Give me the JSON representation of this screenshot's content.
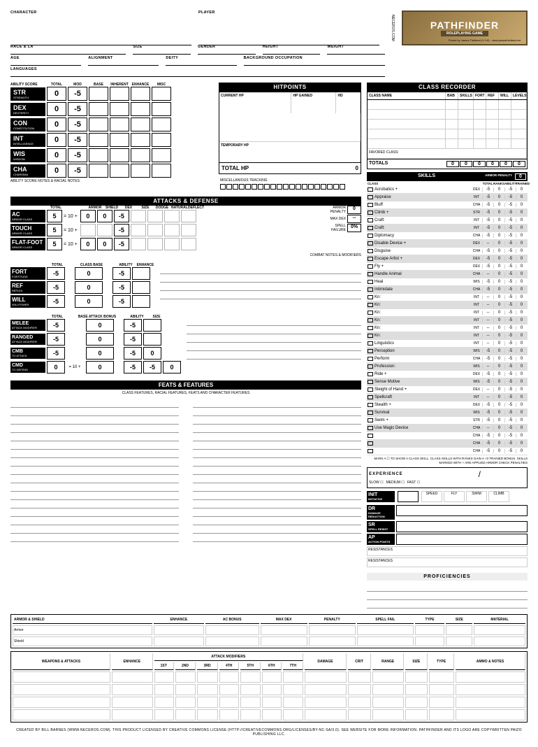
{
  "header": {
    "character": "CHARACTER",
    "player": "PLAYER",
    "race": "RACE & LA",
    "size": "SIZE",
    "gender": "GENDER",
    "height": "HEIGHT",
    "weight": "WEIGHT",
    "age": "AGE",
    "alignment": "ALIGNMENT",
    "deity": "DEITY",
    "bgocc": "BACKGROUND OCCUPATION",
    "languages": "LANGUAGES",
    "neceros": "NECEROS.COM"
  },
  "logo": {
    "main": "PATHFINDER",
    "sub": "ROLEPLAYING GAME",
    "credit": "Forms by James Thelland (1.0.8) - www.jamesthelland.net"
  },
  "abilityHeaders": [
    "TOTAL",
    "MOD",
    "BASE",
    "INHERENT",
    "ENHANCE",
    "MISC"
  ],
  "abilityNote": "ABILITY SCORE NOTES & RACIAL NOTES",
  "abilities": [
    {
      "abbr": "STR",
      "name": "STRENGTH",
      "total": "0",
      "mod": "-5"
    },
    {
      "abbr": "DEX",
      "name": "DEXTERITY",
      "total": "0",
      "mod": "-5"
    },
    {
      "abbr": "CON",
      "name": "CONSTITUTION",
      "total": "0",
      "mod": "-5"
    },
    {
      "abbr": "INT",
      "name": "INTELLIGENCE",
      "total": "0",
      "mod": "-5"
    },
    {
      "abbr": "WIS",
      "name": "WISDOM",
      "total": "0",
      "mod": "-5"
    },
    {
      "abbr": "CHA",
      "name": "CHARISMA",
      "total": "0",
      "mod": "-5"
    }
  ],
  "hp": {
    "title": "HITPOINTS",
    "current": "CURRENT HP",
    "gained": "HP GAINED",
    "hd": "HD",
    "temp": "TEMPORARY HP",
    "total": "TOTAL HP",
    "totalval": "0",
    "misc": "MISCELLANIOUS TRACKING"
  },
  "classrec": {
    "title": "CLASS RECORDER",
    "cols": [
      "CLASS NAME",
      "BAB",
      "SKILLS",
      "FORT",
      "REF",
      "WILL",
      "LEVELS"
    ],
    "favored": "FAVORED CLASS:",
    "totals": "TOTALS",
    "tv": [
      "0",
      "0",
      "0",
      "0",
      "0",
      "0"
    ]
  },
  "skillsTitle": "SKILLS",
  "skillsCols": [
    "CLASS",
    "",
    "",
    "TOTAL",
    "RANKS",
    "ABILITY",
    "TRAINED"
  ],
  "armorPenalty": "ARMOR PENALTY",
  "armorPenVal": "0",
  "skills": [
    {
      "n": "Acrobatics +",
      "s": "DEX",
      "v": [
        "-5",
        "0",
        "-5",
        "0"
      ],
      "sh": 0
    },
    {
      "n": "Appraise",
      "s": "INT",
      "v": [
        "-5",
        "0",
        "-5",
        "0"
      ],
      "sh": 1
    },
    {
      "n": "Bluff",
      "s": "CHA",
      "v": [
        "-5",
        "0",
        "-5",
        "0"
      ],
      "sh": 0
    },
    {
      "n": "Climb +",
      "s": "STR",
      "v": [
        "-5",
        "0",
        "-5",
        "0"
      ],
      "sh": 1
    },
    {
      "n": "Craft:",
      "s": "INT",
      "v": [
        "-5",
        "0",
        "-5",
        "0"
      ],
      "sh": 0
    },
    {
      "n": "Craft:",
      "s": "INT",
      "v": [
        "-5",
        "0",
        "-5",
        "0"
      ],
      "sh": 1
    },
    {
      "n": "Diplomacy",
      "s": "CHA",
      "v": [
        "-5",
        "0",
        "-5",
        "0"
      ],
      "sh": 0
    },
    {
      "n": "Disable Device +",
      "s": "DEX",
      "v": [
        "--",
        "0",
        "-5",
        "0"
      ],
      "sh": 1
    },
    {
      "n": "Disguise",
      "s": "CHA",
      "v": [
        "-5",
        "0",
        "-5",
        "0"
      ],
      "sh": 0
    },
    {
      "n": "Escape Artist +",
      "s": "DEX",
      "v": [
        "-5",
        "0",
        "-5",
        "0"
      ],
      "sh": 1
    },
    {
      "n": "Fly +",
      "s": "DEX",
      "v": [
        "-5",
        "0",
        "-5",
        "0"
      ],
      "sh": 0
    },
    {
      "n": "Handle Animal",
      "s": "CHA",
      "v": [
        "--",
        "0",
        "-5",
        "0"
      ],
      "sh": 1
    },
    {
      "n": "Heal",
      "s": "WIS",
      "v": [
        "-5",
        "0",
        "-5",
        "0"
      ],
      "sh": 0
    },
    {
      "n": "Intimidate",
      "s": "CHA",
      "v": [
        "-5",
        "0",
        "-5",
        "0"
      ],
      "sh": 1
    },
    {
      "n": "Kn:",
      "s": "INT",
      "v": [
        "--",
        "0",
        "-5",
        "0"
      ],
      "sh": 0
    },
    {
      "n": "Kn:",
      "s": "INT",
      "v": [
        "--",
        "0",
        "-5",
        "0"
      ],
      "sh": 1
    },
    {
      "n": "Kn:",
      "s": "INT",
      "v": [
        "--",
        "0",
        "-5",
        "0"
      ],
      "sh": 0
    },
    {
      "n": "Kn:",
      "s": "INT",
      "v": [
        "--",
        "0",
        "-5",
        "0"
      ],
      "sh": 1
    },
    {
      "n": "Kn:",
      "s": "INT",
      "v": [
        "--",
        "0",
        "-5",
        "0"
      ],
      "sh": 0
    },
    {
      "n": "Kn:",
      "s": "INT",
      "v": [
        "--",
        "0",
        "-5",
        "0"
      ],
      "sh": 1
    },
    {
      "n": "Linguistics",
      "s": "INT",
      "v": [
        "--",
        "0",
        "-5",
        "0"
      ],
      "sh": 0
    },
    {
      "n": "Perception",
      "s": "WIS",
      "v": [
        "-5",
        "0",
        "-5",
        "0"
      ],
      "sh": 1
    },
    {
      "n": "Perform",
      "s": "CHA",
      "v": [
        "-5",
        "0",
        "-5",
        "0"
      ],
      "sh": 0
    },
    {
      "n": "Profession:",
      "s": "WIS",
      "v": [
        "--",
        "0",
        "-5",
        "0"
      ],
      "sh": 1
    },
    {
      "n": "Ride +",
      "s": "DEX",
      "v": [
        "-5",
        "0",
        "-5",
        "0"
      ],
      "sh": 0
    },
    {
      "n": "Sense Motive",
      "s": "WIS",
      "v": [
        "-5",
        "0",
        "-5",
        "0"
      ],
      "sh": 1
    },
    {
      "n": "Sleight of Hand +",
      "s": "DEX",
      "v": [
        "--",
        "0",
        "-5",
        "0"
      ],
      "sh": 0
    },
    {
      "n": "Spellcraft",
      "s": "INT",
      "v": [
        "--",
        "0",
        "-5",
        "0"
      ],
      "sh": 1
    },
    {
      "n": "Stealth +",
      "s": "DEX",
      "v": [
        "-5",
        "0",
        "-5",
        "0"
      ],
      "sh": 0
    },
    {
      "n": "Survival",
      "s": "WIS",
      "v": [
        "-5",
        "0",
        "-5",
        "0"
      ],
      "sh": 1
    },
    {
      "n": "Swim +",
      "s": "STR",
      "v": [
        "-5",
        "0",
        "-5",
        "0"
      ],
      "sh": 0
    },
    {
      "n": "Use Magic Device",
      "s": "CHA",
      "v": [
        "--",
        "0",
        "-5",
        "0"
      ],
      "sh": 1
    },
    {
      "n": "",
      "s": "CHA",
      "v": [
        "-5",
        "0",
        "-5",
        "0"
      ],
      "sh": 0
    },
    {
      "n": "",
      "s": "CHA",
      "v": [
        "-5",
        "0",
        "-5",
        "0"
      ],
      "sh": 1
    },
    {
      "n": "",
      "s": "CHA",
      "v": [
        "-5",
        "0",
        "-5",
        "0"
      ],
      "sh": 0
    }
  ],
  "skillNote": "MARK A ☐ TO SHOW A CLASS SKILL. CLASS SKILLS WITH RANKS GAIN A +3 TRAINED BONUS. SKILLS MARKED WITH + ARE APPLIED ARMOR CHECK PENALTIES",
  "ad": {
    "title": "ATTACKS & DEFENSE"
  },
  "adHeaders": [
    "TOTAL",
    "",
    "ARMOR",
    "SHIELD",
    "DEX",
    "SIZE",
    "DODGE",
    "NATURAL",
    "DEFLECT"
  ],
  "armorClass": [
    {
      "abbr": "AC",
      "name": "ARMOR CLASS",
      "total": "5",
      "base": "= 10 +",
      "v": [
        "0",
        "0",
        "-5",
        "",
        "",
        "",
        ""
      ]
    },
    {
      "abbr": "TOUCH",
      "name": "ARMOR CLASS",
      "total": "5",
      "base": "= 10 +",
      "v": [
        "",
        "",
        "-5",
        "",
        "",
        "",
        ""
      ]
    },
    {
      "abbr": "FLAT-FOOT",
      "name": "ARMOR CLASS",
      "total": "5",
      "base": "= 10 +",
      "v": [
        "0",
        "0",
        "-5",
        "",
        "",
        "",
        ""
      ]
    }
  ],
  "sideStats": [
    {
      "l": "ARMOR PENALTY",
      "v": "0"
    },
    {
      "l": "MAX DEX",
      "v": "--"
    },
    {
      "l": "SPELL FAILURE",
      "v": "0%"
    }
  ],
  "combatNote": "COMBAT NOTES & MODIFIERS",
  "saveHeaders": [
    "TOTAL",
    "",
    "CLASS BASE",
    "",
    "ABILITY",
    "ENHANCE"
  ],
  "saves": [
    {
      "abbr": "FORT",
      "name": "FORTITUDE",
      "v": [
        "-5",
        "",
        "0",
        "",
        "-5",
        ""
      ]
    },
    {
      "abbr": "REF",
      "name": "REFLEX",
      "v": [
        "-5",
        "",
        "0",
        "",
        "-5",
        ""
      ]
    },
    {
      "abbr": "WILL",
      "name": "WILLPOWER",
      "v": [
        "-5",
        "",
        "0",
        "",
        "-5",
        ""
      ]
    }
  ],
  "attackHeaders": [
    "TOTAL",
    "",
    "BASE ATTACK BONUS",
    "",
    "ABILITY",
    "SIZE"
  ],
  "attacks": [
    {
      "abbr": "MELEE",
      "name": "ATTACK MODIFIER",
      "v": [
        "-5",
        "",
        "0",
        "",
        "-5",
        ""
      ]
    },
    {
      "abbr": "RANGED",
      "name": "ATTACK MODIFIER",
      "v": [
        "-5",
        "",
        "0",
        "",
        "-5",
        ""
      ]
    },
    {
      "abbr": "CMB",
      "name": "TO ATTACK",
      "v": [
        "-5",
        "",
        "0",
        "",
        "-5",
        "0"
      ]
    },
    {
      "abbr": "CMD",
      "name": "TO DEFEND",
      "v": [
        "0",
        "= 10 +",
        "0",
        "",
        "-5",
        "-5",
        "0"
      ]
    }
  ],
  "feats": {
    "title": "FEATS & FEATURES",
    "sub": "CLASS FEATURES, RACIAL FEATURES, FEATS AND CHARACTER FEATURES"
  },
  "exp": {
    "title": "EXPERIENCE",
    "slow": "SLOW ☐",
    "med": "MEDIUM ☐",
    "fast": "FAST ☐",
    "slash": "/"
  },
  "init": {
    "abbr": "INIT",
    "name": "INITIATIVE"
  },
  "speedCols": [
    "SPEED",
    "FLY",
    "SWIM",
    "CLIMB"
  ],
  "miscStats": [
    {
      "abbr": "DR",
      "name": "DAMAGE REDUCTION"
    },
    {
      "abbr": "SR",
      "name": "SPELL RESIST"
    },
    {
      "abbr": "AP",
      "name": "ACTION POINTS"
    }
  ],
  "resistances": "RESISTANCES",
  "prof": "PROFICIENCIES",
  "armorCols": [
    "ARMOR & SHIELD",
    "ENHANCE",
    "AC BONUS",
    "MAX DEX",
    "PENALTY",
    "SPELL FAIL",
    "TYPE",
    "SIZE",
    "MATERIAL"
  ],
  "armorRows": [
    "Armor",
    "Shield"
  ],
  "weaponCols": [
    "WEAPONS & ATTACKS",
    "ENHANCE",
    "1ST",
    "2ND",
    "3RD",
    "4TH",
    "5TH",
    "6TH",
    "7TH",
    "DAMAGE",
    "CRIT",
    "RANGE",
    "SIZE",
    "TYPE",
    "AMMO & NOTES"
  ],
  "weaponSubhead": "ATTACK MODIFIERS",
  "footer": "CREATED BY BILL BARNES (WWW.NECEROS.COM). THIS PRODUCT LICENSED BY CREATIVE COMMONS LICENSE (HTTP://CREATIVECOMMONS.ORG/LICENSES/BY-NC-SA/3.0). SEE WEBSITE FOR MORE INFORMATION. PATHFINDER AND ITS LOGO ARE COPYWRITTEN PAIZO PUBLISHING LLC."
}
